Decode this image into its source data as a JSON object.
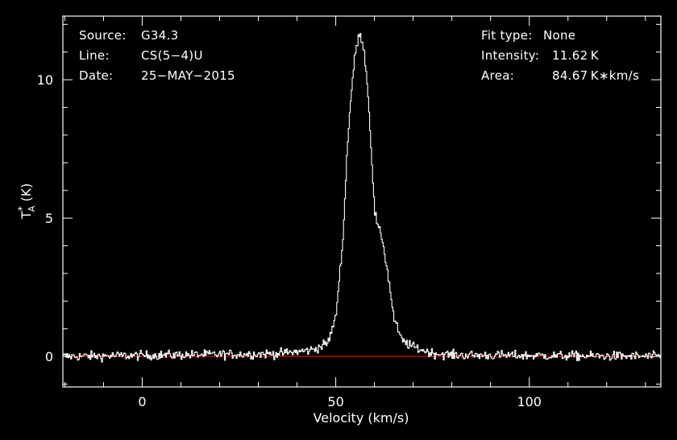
{
  "header": {
    "source_label": "Source:",
    "source_value": "G34.3",
    "line_label": "Line:",
    "line_value": "CS(5−4)U",
    "date_label": "Date:",
    "date_value": "25−MAY−2015",
    "fit_label": "Fit type:",
    "fit_value": "None",
    "intensity_label": "Intensity:",
    "intensity_value": "11.62 K",
    "area_label": "Area:",
    "area_value": "84.67 K∗km/s"
  },
  "colors": {
    "background": "#000000",
    "spectrum": "#ffffff",
    "baseline": "#cc0000",
    "axes": "#ffffff"
  },
  "chart_data": {
    "type": "line",
    "title": "",
    "xlabel": "Velocity (km/s)",
    "ylabel_main": "T",
    "ylabel_sup": "*",
    "ylabel_sub": "A",
    "ylabel_unit": " (K)",
    "xlim": [
      -20.5,
      134
    ],
    "ylim": [
      -1.1,
      12.3
    ],
    "xticks": [
      0,
      50,
      100
    ],
    "yticks": [
      0,
      5,
      10
    ],
    "grid": false,
    "baseline": {
      "y": 0
    },
    "noise_rms": 0.12,
    "profile": {
      "x": [
        -20.5,
        35,
        42,
        44,
        46,
        48,
        50,
        52,
        53,
        54,
        55,
        56,
        57,
        58,
        59,
        60,
        61,
        62,
        63,
        64,
        65,
        66,
        67,
        68,
        70,
        72,
        75,
        80,
        134
      ],
      "y": [
        0,
        0.1,
        0.2,
        0.25,
        0.35,
        0.5,
        1.4,
        4.5,
        7.6,
        9.5,
        10.9,
        11.62,
        11.4,
        10.2,
        8.0,
        5.3,
        4.6,
        4.3,
        3.4,
        2.5,
        1.4,
        1.0,
        0.6,
        0.5,
        0.35,
        0.25,
        0.12,
        0.05,
        0
      ]
    }
  }
}
